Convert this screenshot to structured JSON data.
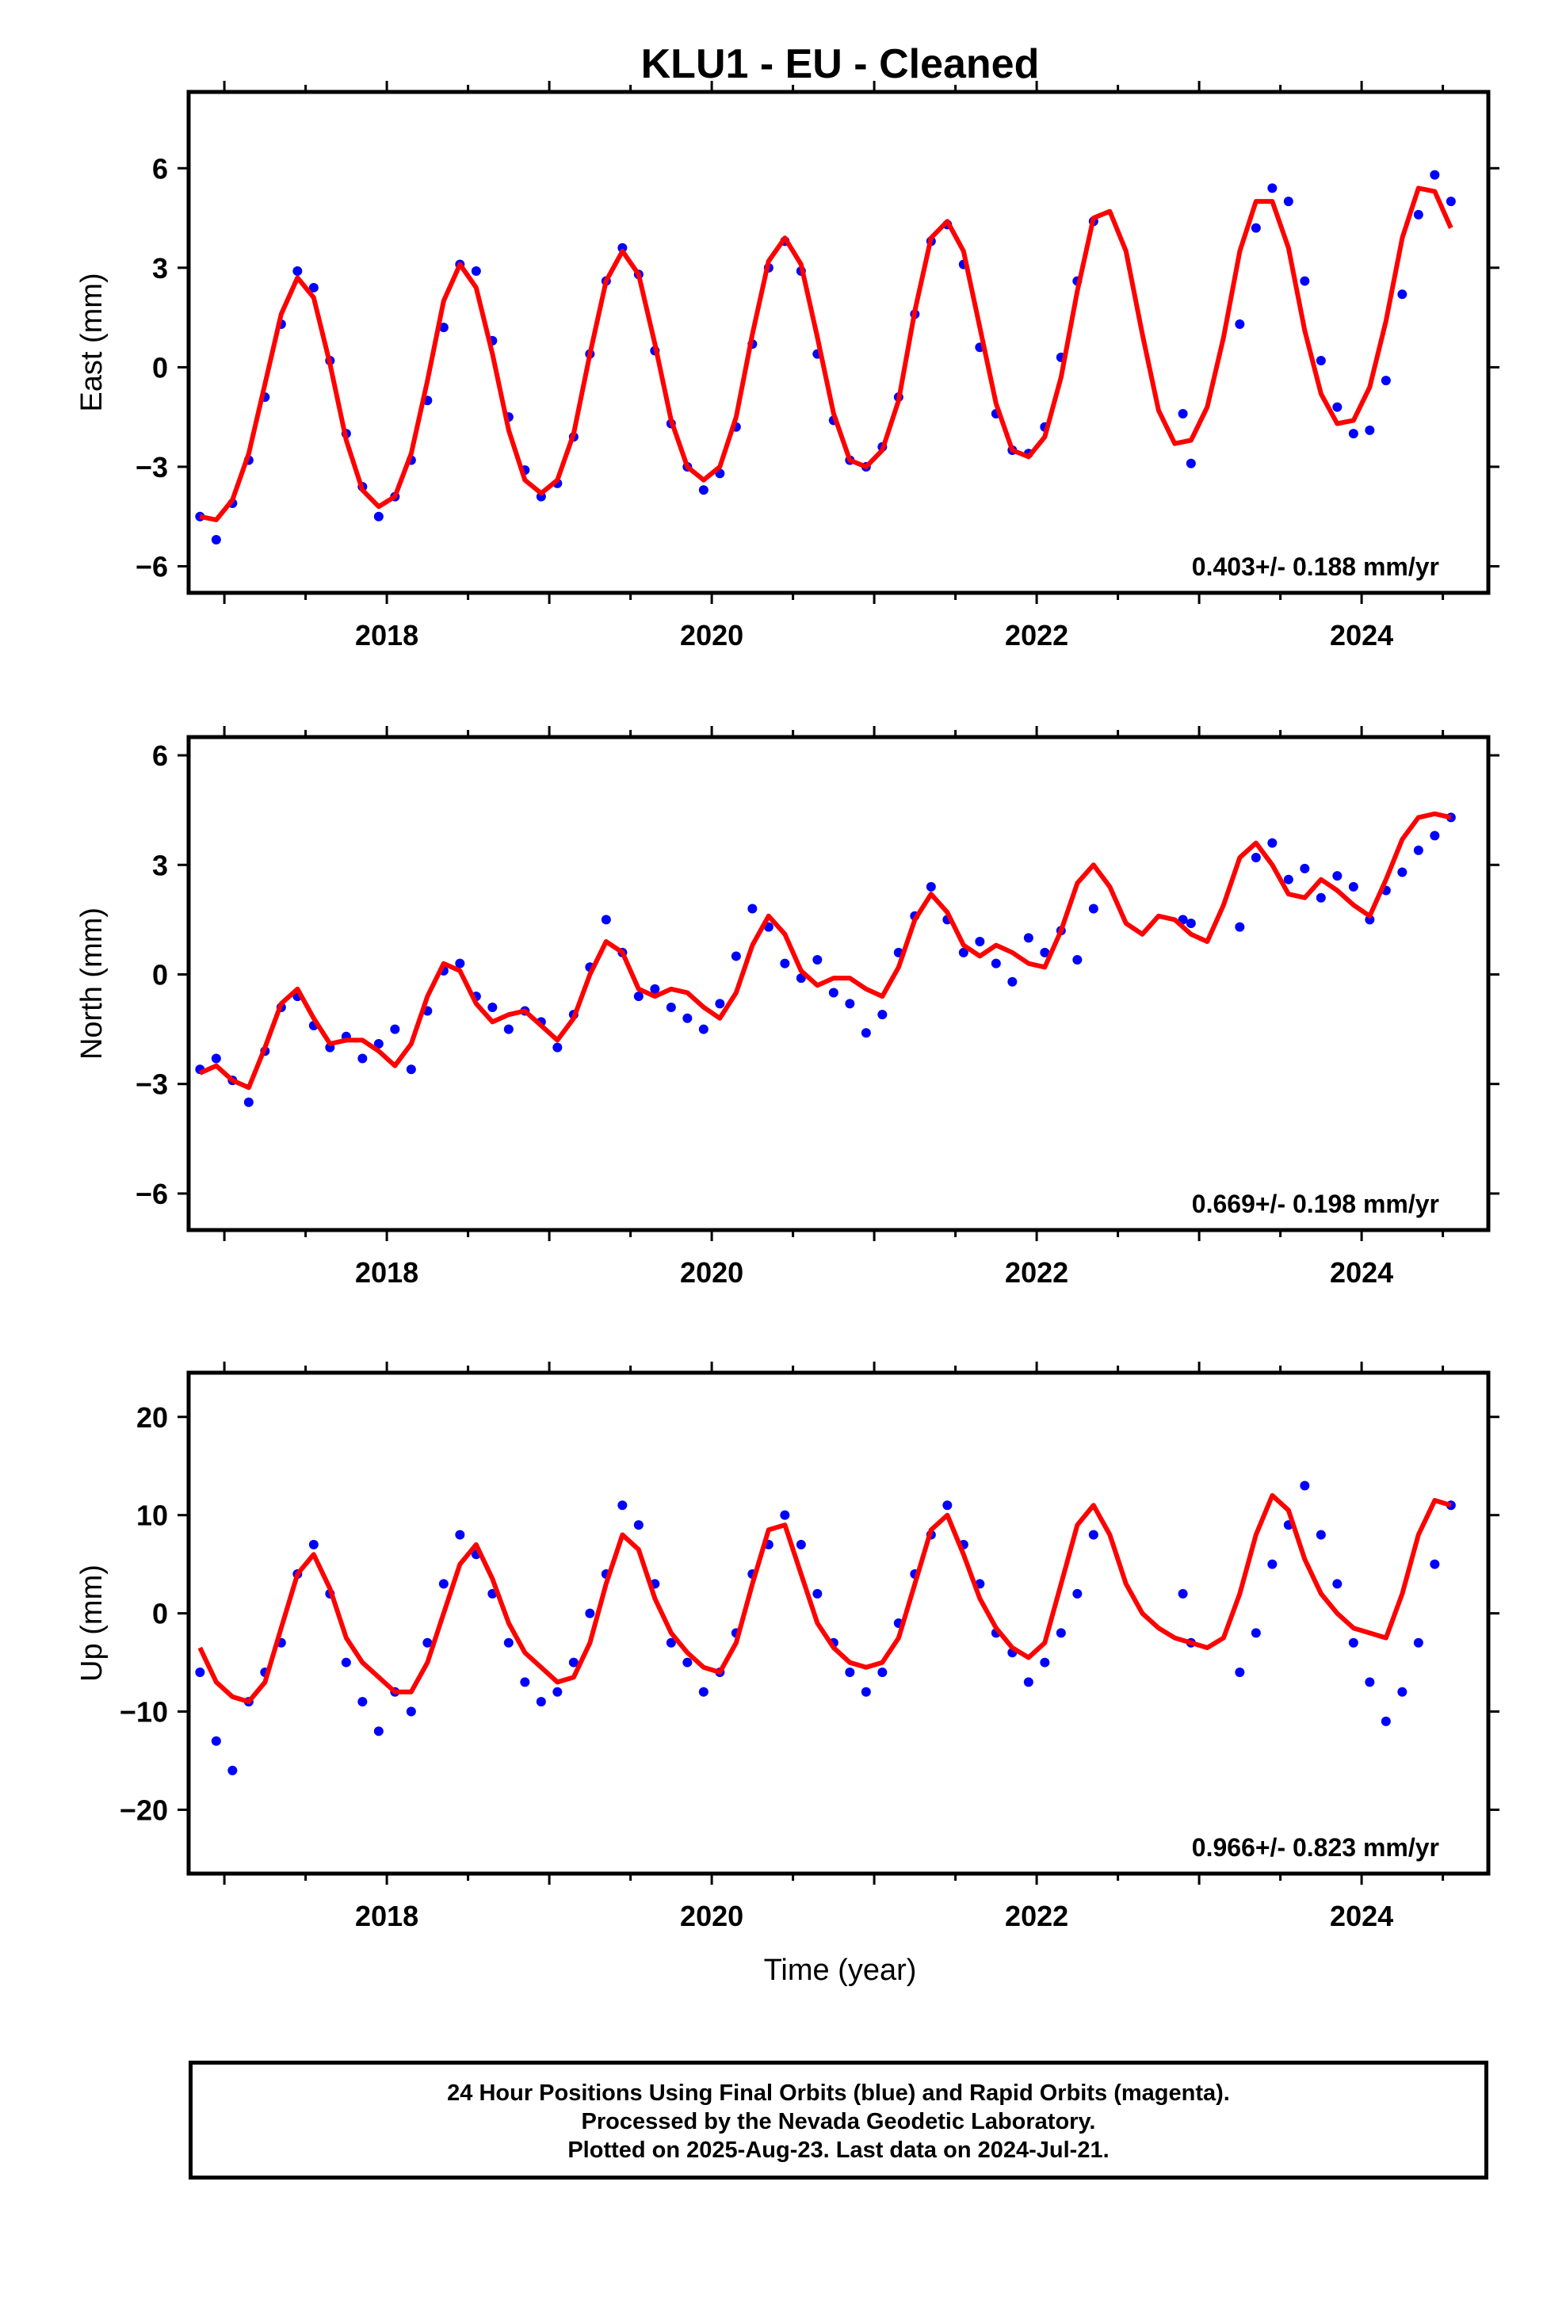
{
  "title": "KLU1  - EU - Cleaned",
  "xlabel": "Time (year)",
  "footer": {
    "line1": "24 Hour Positions Using Final Orbits (blue) and Rapid Orbits (magenta).",
    "line2": "Processed by the Nevada Geodetic Laboratory.",
    "line3": "Plotted on 2025-Aug-23. Last data on 2024-Jul-21."
  },
  "colors": {
    "points": "#0000ff",
    "model": "#ff0000",
    "axes": "#000000"
  },
  "chart_data": [
    {
      "type": "scatter",
      "title": "",
      "xlabel": "",
      "ylabel": "East (mm)",
      "xlim": [
        2016.78,
        2024.78
      ],
      "ylim": [
        -6.8,
        8.3
      ],
      "xticks": [
        2018,
        2020,
        2022,
        2024
      ],
      "yticks": [
        -6,
        -3,
        0,
        3,
        6
      ],
      "ytick_labels": [
        "−6",
        "−3",
        "0",
        "3",
        "6"
      ],
      "rate_label": "0.403+/- 0.188 mm/yr",
      "series": [
        {
          "kind": "points",
          "x": [
            2016.85,
            2016.95,
            2017.05,
            2017.15,
            2017.25,
            2017.35,
            2017.45,
            2017.55,
            2017.65,
            2017.75,
            2017.85,
            2017.95,
            2018.05,
            2018.15,
            2018.25,
            2018.35,
            2018.45,
            2018.55,
            2018.65,
            2018.75,
            2018.85,
            2018.95,
            2019.05,
            2019.15,
            2019.25,
            2019.35,
            2019.45,
            2019.55,
            2019.65,
            2019.75,
            2019.85,
            2019.95,
            2020.05,
            2020.15,
            2020.25,
            2020.35,
            2020.45,
            2020.55,
            2020.65,
            2020.75,
            2020.85,
            2020.95,
            2021.05,
            2021.15,
            2021.25,
            2021.35,
            2021.45,
            2021.55,
            2021.65,
            2021.75,
            2021.85,
            2021.95,
            2022.05,
            2022.15,
            2022.25,
            2022.35,
            2022.9,
            2022.95,
            2023.25,
            2023.35,
            2023.45,
            2023.55,
            2023.65,
            2023.75,
            2023.85,
            2023.95,
            2024.05,
            2024.15,
            2024.25,
            2024.35,
            2024.45,
            2024.55
          ],
          "y": [
            -4.5,
            -5.2,
            -4.1,
            -2.8,
            -0.9,
            1.3,
            2.9,
            2.4,
            0.2,
            -2.0,
            -3.6,
            -4.5,
            -3.9,
            -2.8,
            -1.0,
            1.2,
            3.1,
            2.9,
            0.8,
            -1.5,
            -3.1,
            -3.9,
            -3.5,
            -2.1,
            0.4,
            2.6,
            3.6,
            2.8,
            0.5,
            -1.7,
            -3.0,
            -3.7,
            -3.2,
            -1.8,
            0.7,
            3.0,
            3.8,
            2.9,
            0.4,
            -1.6,
            -2.8,
            -3.0,
            -2.4,
            -0.9,
            1.6,
            3.8,
            4.3,
            3.1,
            0.6,
            -1.4,
            -2.5,
            -2.6,
            -1.8,
            0.3,
            2.6,
            4.4,
            -1.4,
            -2.9,
            1.3,
            4.2,
            5.4,
            5.0,
            2.6,
            0.2,
            -1.2,
            -2.0,
            -1.9,
            -0.4,
            2.2,
            4.6,
            5.8,
            5.0
          ]
        },
        {
          "kind": "line",
          "x": [
            2016.85,
            2016.95,
            2017.05,
            2017.15,
            2017.25,
            2017.35,
            2017.45,
            2017.55,
            2017.65,
            2017.75,
            2017.85,
            2017.95,
            2018.05,
            2018.15,
            2018.25,
            2018.35,
            2018.45,
            2018.55,
            2018.65,
            2018.75,
            2018.85,
            2018.95,
            2019.05,
            2019.15,
            2019.25,
            2019.35,
            2019.45,
            2019.55,
            2019.65,
            2019.75,
            2019.85,
            2019.95,
            2020.05,
            2020.15,
            2020.25,
            2020.35,
            2020.45,
            2020.55,
            2020.65,
            2020.75,
            2020.85,
            2020.95,
            2021.05,
            2021.15,
            2021.25,
            2021.35,
            2021.45,
            2021.55,
            2021.65,
            2021.75,
            2021.85,
            2021.95,
            2022.05,
            2022.15,
            2022.25,
            2022.35,
            2022.45,
            2022.55,
            2022.65,
            2022.75,
            2022.85,
            2022.95,
            2023.05,
            2023.15,
            2023.25,
            2023.35,
            2023.45,
            2023.55,
            2023.65,
            2023.75,
            2023.85,
            2023.95,
            2024.05,
            2024.15,
            2024.25,
            2024.35,
            2024.45,
            2024.55
          ],
          "y": [
            -4.5,
            -4.6,
            -4.0,
            -2.6,
            -0.5,
            1.6,
            2.7,
            2.1,
            0.1,
            -2.2,
            -3.7,
            -4.2,
            -3.9,
            -2.6,
            -0.4,
            2.0,
            3.1,
            2.4,
            0.4,
            -1.9,
            -3.4,
            -3.8,
            -3.4,
            -2.0,
            0.4,
            2.6,
            3.5,
            2.8,
            0.7,
            -1.6,
            -3.0,
            -3.4,
            -3.0,
            -1.5,
            1.0,
            3.2,
            3.9,
            3.1,
            0.9,
            -1.4,
            -2.8,
            -3.0,
            -2.5,
            -1.0,
            1.7,
            3.9,
            4.4,
            3.5,
            1.2,
            -1.1,
            -2.5,
            -2.7,
            -2.1,
            -0.3,
            2.3,
            4.5,
            4.7,
            3.5,
            1.0,
            -1.3,
            -2.3,
            -2.2,
            -1.2,
            0.9,
            3.5,
            5.0,
            5.0,
            3.6,
            1.1,
            -0.8,
            -1.7,
            -1.6,
            -0.6,
            1.4,
            3.9,
            5.4,
            5.3,
            4.2
          ]
        }
      ]
    },
    {
      "type": "scatter",
      "title": "",
      "xlabel": "",
      "ylabel": "North (mm)",
      "xlim": [
        2016.78,
        2024.78
      ],
      "ylim": [
        -7.0,
        6.5
      ],
      "xticks": [
        2018,
        2020,
        2022,
        2024
      ],
      "yticks": [
        -6,
        -3,
        0,
        3,
        6
      ],
      "ytick_labels": [
        "−6",
        "−3",
        "0",
        "3",
        "6"
      ],
      "rate_label": "0.669+/- 0.198 mm/yr",
      "series": [
        {
          "kind": "points",
          "x": [
            2016.85,
            2016.95,
            2017.05,
            2017.15,
            2017.25,
            2017.35,
            2017.45,
            2017.55,
            2017.65,
            2017.75,
            2017.85,
            2017.95,
            2018.05,
            2018.15,
            2018.25,
            2018.35,
            2018.45,
            2018.55,
            2018.65,
            2018.75,
            2018.85,
            2018.95,
            2019.05,
            2019.15,
            2019.25,
            2019.35,
            2019.45,
            2019.55,
            2019.65,
            2019.75,
            2019.85,
            2019.95,
            2020.05,
            2020.15,
            2020.25,
            2020.35,
            2020.45,
            2020.55,
            2020.65,
            2020.75,
            2020.85,
            2020.95,
            2021.05,
            2021.15,
            2021.25,
            2021.35,
            2021.45,
            2021.55,
            2021.65,
            2021.75,
            2021.85,
            2021.95,
            2022.05,
            2022.15,
            2022.25,
            2022.35,
            2022.9,
            2022.95,
            2023.25,
            2023.35,
            2023.45,
            2023.55,
            2023.65,
            2023.75,
            2023.85,
            2023.95,
            2024.05,
            2024.15,
            2024.25,
            2024.35,
            2024.45,
            2024.55
          ],
          "y": [
            -2.6,
            -2.3,
            -2.9,
            -3.5,
            -2.1,
            -0.9,
            -0.6,
            -1.4,
            -2.0,
            -1.7,
            -2.3,
            -1.9,
            -1.5,
            -2.6,
            -1.0,
            0.1,
            0.3,
            -0.6,
            -0.9,
            -1.5,
            -1.0,
            -1.3,
            -2.0,
            -1.1,
            0.2,
            1.5,
            0.6,
            -0.6,
            -0.4,
            -0.9,
            -1.2,
            -1.5,
            -0.8,
            0.5,
            1.8,
            1.3,
            0.3,
            -0.1,
            0.4,
            -0.5,
            -0.8,
            -1.6,
            -1.1,
            0.6,
            1.6,
            2.4,
            1.5,
            0.6,
            0.9,
            0.3,
            -0.2,
            1.0,
            0.6,
            1.2,
            0.4,
            1.8,
            1.5,
            1.4,
            1.3,
            3.2,
            3.6,
            2.6,
            2.9,
            2.1,
            2.7,
            2.4,
            1.5,
            2.3,
            2.8,
            3.4,
            3.8,
            4.3
          ]
        },
        {
          "kind": "line",
          "x": [
            2016.85,
            2016.95,
            2017.05,
            2017.15,
            2017.25,
            2017.35,
            2017.45,
            2017.55,
            2017.65,
            2017.75,
            2017.85,
            2017.95,
            2018.05,
            2018.15,
            2018.25,
            2018.35,
            2018.45,
            2018.55,
            2018.65,
            2018.75,
            2018.85,
            2018.95,
            2019.05,
            2019.15,
            2019.25,
            2019.35,
            2019.45,
            2019.55,
            2019.65,
            2019.75,
            2019.85,
            2019.95,
            2020.05,
            2020.15,
            2020.25,
            2020.35,
            2020.45,
            2020.55,
            2020.65,
            2020.75,
            2020.85,
            2020.95,
            2021.05,
            2021.15,
            2021.25,
            2021.35,
            2021.45,
            2021.55,
            2021.65,
            2021.75,
            2021.85,
            2021.95,
            2022.05,
            2022.15,
            2022.25,
            2022.35,
            2022.45,
            2022.55,
            2022.65,
            2022.75,
            2022.85,
            2022.95,
            2023.05,
            2023.15,
            2023.25,
            2023.35,
            2023.45,
            2023.55,
            2023.65,
            2023.75,
            2023.85,
            2023.95,
            2024.05,
            2024.15,
            2024.25,
            2024.35,
            2024.45,
            2024.55
          ],
          "y": [
            -2.7,
            -2.5,
            -2.9,
            -3.1,
            -2.0,
            -0.8,
            -0.4,
            -1.2,
            -1.9,
            -1.8,
            -1.8,
            -2.1,
            -2.5,
            -1.9,
            -0.6,
            0.3,
            0.1,
            -0.8,
            -1.3,
            -1.1,
            -1.0,
            -1.4,
            -1.8,
            -1.2,
            0.0,
            0.9,
            0.6,
            -0.4,
            -0.6,
            -0.4,
            -0.5,
            -0.9,
            -1.2,
            -0.5,
            0.8,
            1.6,
            1.1,
            0.1,
            -0.3,
            -0.1,
            -0.1,
            -0.4,
            -0.6,
            0.2,
            1.5,
            2.2,
            1.7,
            0.8,
            0.5,
            0.8,
            0.6,
            0.3,
            0.2,
            1.2,
            2.5,
            3.0,
            2.4,
            1.4,
            1.1,
            1.6,
            1.5,
            1.1,
            0.9,
            1.9,
            3.2,
            3.6,
            3.0,
            2.2,
            2.1,
            2.6,
            2.3,
            1.9,
            1.6,
            2.6,
            3.7,
            4.3,
            4.4,
            4.3
          ]
        }
      ]
    },
    {
      "type": "scatter",
      "title": "",
      "xlabel": "Time (year)",
      "ylabel": "Up (mm)",
      "xlim": [
        2016.78,
        2024.78
      ],
      "ylim": [
        -26.5,
        24.5
      ],
      "xticks": [
        2018,
        2020,
        2022,
        2024
      ],
      "yticks": [
        -20,
        -10,
        0,
        10,
        20
      ],
      "ytick_labels": [
        "−20",
        "−10",
        "0",
        "10",
        "20"
      ],
      "rate_label": "0.966+/- 0.823 mm/yr",
      "series": [
        {
          "kind": "points",
          "x": [
            2016.85,
            2016.95,
            2017.05,
            2017.15,
            2017.25,
            2017.35,
            2017.45,
            2017.55,
            2017.65,
            2017.75,
            2017.85,
            2017.95,
            2018.05,
            2018.15,
            2018.25,
            2018.35,
            2018.45,
            2018.55,
            2018.65,
            2018.75,
            2018.85,
            2018.95,
            2019.05,
            2019.15,
            2019.25,
            2019.35,
            2019.45,
            2019.55,
            2019.65,
            2019.75,
            2019.85,
            2019.95,
            2020.05,
            2020.15,
            2020.25,
            2020.35,
            2020.45,
            2020.55,
            2020.65,
            2020.75,
            2020.85,
            2020.95,
            2021.05,
            2021.15,
            2021.25,
            2021.35,
            2021.45,
            2021.55,
            2021.65,
            2021.75,
            2021.85,
            2021.95,
            2022.05,
            2022.15,
            2022.25,
            2022.35,
            2022.9,
            2022.95,
            2023.25,
            2023.35,
            2023.45,
            2023.55,
            2023.65,
            2023.75,
            2023.85,
            2023.95,
            2024.05,
            2024.15,
            2024.25,
            2024.35,
            2024.45,
            2024.55
          ],
          "y": [
            -6,
            -13,
            -16,
            -9,
            -6,
            -3,
            4,
            7,
            2,
            -5,
            -9,
            -12,
            -8,
            -10,
            -3,
            3,
            8,
            6,
            2,
            -3,
            -7,
            -9,
            -8,
            -5,
            0,
            4,
            11,
            9,
            3,
            -3,
            -5,
            -8,
            -6,
            -2,
            4,
            7,
            10,
            7,
            2,
            -3,
            -6,
            -8,
            -6,
            -1,
            4,
            8,
            11,
            7,
            3,
            -2,
            -4,
            -7,
            -5,
            -2,
            2,
            8,
            2,
            -3,
            -6,
            -2,
            5,
            9,
            13,
            8,
            3,
            -3,
            -7,
            -11,
            -8,
            -3,
            5,
            11
          ]
        },
        {
          "kind": "line",
          "x": [
            2016.85,
            2016.95,
            2017.05,
            2017.15,
            2017.25,
            2017.35,
            2017.45,
            2017.55,
            2017.65,
            2017.75,
            2017.85,
            2017.95,
            2018.05,
            2018.15,
            2018.25,
            2018.35,
            2018.45,
            2018.55,
            2018.65,
            2018.75,
            2018.85,
            2018.95,
            2019.05,
            2019.15,
            2019.25,
            2019.35,
            2019.45,
            2019.55,
            2019.65,
            2019.75,
            2019.85,
            2019.95,
            2020.05,
            2020.15,
            2020.25,
            2020.35,
            2020.45,
            2020.55,
            2020.65,
            2020.75,
            2020.85,
            2020.95,
            2021.05,
            2021.15,
            2021.25,
            2021.35,
            2021.45,
            2021.55,
            2021.65,
            2021.75,
            2021.85,
            2021.95,
            2022.05,
            2022.15,
            2022.25,
            2022.35,
            2022.45,
            2022.55,
            2022.65,
            2022.75,
            2022.85,
            2022.95,
            2023.05,
            2023.15,
            2023.25,
            2023.35,
            2023.45,
            2023.55,
            2023.65,
            2023.75,
            2023.85,
            2023.95,
            2024.05,
            2024.15,
            2024.25,
            2024.35,
            2024.45,
            2024.55
          ],
          "y": [
            -3.5,
            -7.0,
            -8.5,
            -9.0,
            -7.0,
            -1.5,
            4.0,
            6.0,
            2.5,
            -2.5,
            -5.0,
            -6.5,
            -8.0,
            -8.0,
            -5.0,
            0.0,
            5.0,
            7.0,
            3.5,
            -1.0,
            -4.0,
            -5.5,
            -7.0,
            -6.5,
            -3.0,
            3.0,
            8.0,
            6.5,
            1.5,
            -2.0,
            -4.0,
            -5.5,
            -6.0,
            -3.0,
            3.0,
            8.5,
            9.0,
            4.0,
            -1.0,
            -3.5,
            -5.0,
            -5.5,
            -5.0,
            -2.5,
            3.0,
            8.5,
            10.0,
            6.0,
            1.5,
            -1.5,
            -3.5,
            -4.5,
            -3.0,
            3.0,
            9.0,
            11.0,
            8.0,
            3.0,
            0.0,
            -1.5,
            -2.5,
            -3.0,
            -3.5,
            -2.5,
            2.0,
            8.0,
            12.0,
            10.5,
            5.5,
            2.0,
            0.0,
            -1.5,
            -2.0,
            -2.5,
            2.0,
            8.0,
            11.5,
            11.0
          ]
        }
      ]
    }
  ]
}
